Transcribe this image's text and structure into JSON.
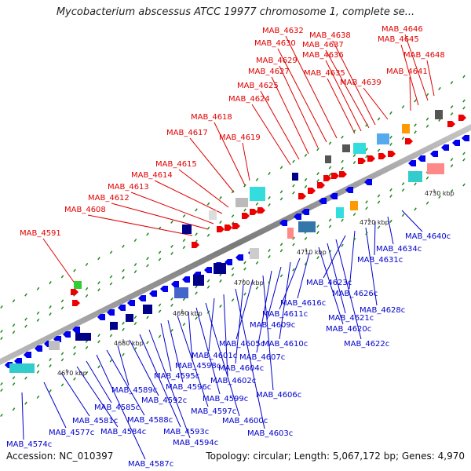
{
  "header": {
    "title": "Mycobacterium abscessus ATCC 19977 chromosome 1, complete se..."
  },
  "footer": {
    "accession": "Accession: NC_010397",
    "topology": "Topology: circular",
    "length": "Length: 5,067,172 bp",
    "genes": "Genes: 4,970"
  },
  "colors": {
    "forward_label": "#e00000",
    "reverse_label": "#0000cc",
    "backbone": "#8c8c8c",
    "tick": "#1a8a1a"
  },
  "scale": {
    "ticks": [
      "4670 kbp",
      "4680 kbp",
      "4690 kbp",
      "4700 kbp",
      "4710 kbp",
      "4720 kbp",
      "4730 kbp"
    ]
  },
  "forward_genes": [
    "MAB_4591",
    "MAB_4608",
    "MAB_4612",
    "MAB_4613",
    "MAB_4614",
    "MAB_4615",
    "MAB_4617",
    "MAB_4618",
    "MAB_4619",
    "MAB_4624",
    "MAB_4625",
    "MAB_4627",
    "MAB_4629",
    "MAB_4630",
    "MAB_4632",
    "MAB_4635",
    "MAB_4636",
    "MAB_4637",
    "MAB_4638",
    "MAB_4639",
    "MAB_4641",
    "MAB_4645",
    "MAB_4646",
    "MAB_4648"
  ],
  "reverse_genes": [
    "MAB_4574c",
    "MAB_4577c",
    "MAB_4581c",
    "MAB_4584c",
    "MAB_4585c",
    "MAB_4587c",
    "MAB_4588c",
    "MAB_4589c",
    "MAB_4592c",
    "MAB_4593c",
    "MAB_4594c",
    "MAB_4595c",
    "MAB_4596c",
    "MAB_4597c",
    "MAB_4598c",
    "MAB_4599c",
    "MAB_4600c",
    "MAB_4601c",
    "MAB_4602c",
    "MAB_4603c",
    "MAB_4604c",
    "MAB_4605c",
    "MAB_4606c",
    "MAB_4607c",
    "MAB_4609c",
    "MAB_4610c",
    "MAB_4611c",
    "MAB_4616c",
    "MAB_4620c",
    "MAB_4621c",
    "MAB_4622c",
    "MAB_4623c",
    "MAB_4626c",
    "MAB_4628c",
    "MAB_4631c",
    "MAB_4634c",
    "MAB_4640c"
  ]
}
